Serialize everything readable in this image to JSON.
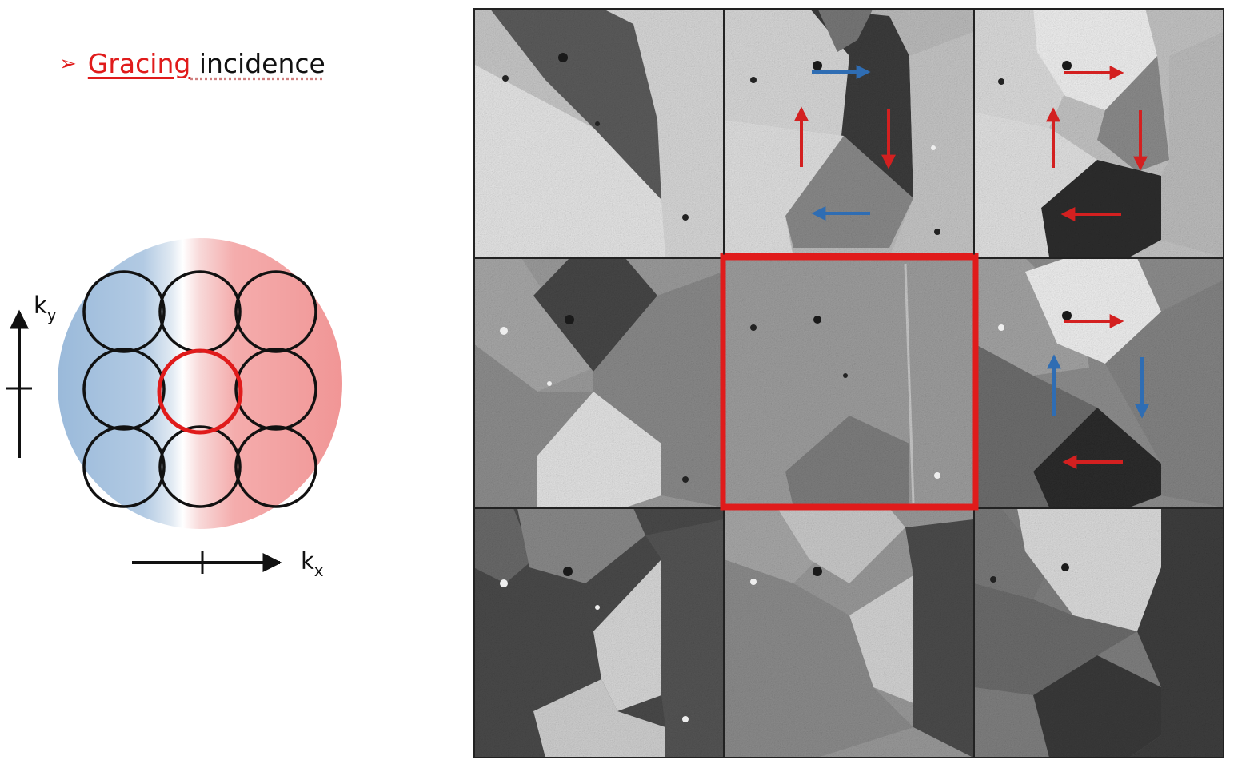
{
  "title": {
    "bullet": "➢",
    "highlight": "Gracing",
    "rest": " incidence"
  },
  "kspace": {
    "x_label": "k",
    "x_sub": "x",
    "y_label": "k",
    "y_sub": "y",
    "selected_circle": "center"
  },
  "colors": {
    "accent": "#e01b1b",
    "arrow_red": "#d32020",
    "arrow_blue": "#2f6db3",
    "disc_blue": "#7fa6cf",
    "disc_red": "#ef7f7f"
  },
  "images": {
    "layout": "3x3",
    "selected": "middle-center",
    "panels": [
      {
        "position": "top-left"
      },
      {
        "position": "top-center",
        "arrows": [
          {
            "dir": "right",
            "color": "blue"
          },
          {
            "dir": "down",
            "color": "red"
          },
          {
            "dir": "left",
            "color": "blue"
          },
          {
            "dir": "up",
            "color": "red"
          }
        ]
      },
      {
        "position": "top-right",
        "arrows": [
          {
            "dir": "right",
            "color": "red"
          },
          {
            "dir": "down",
            "color": "red"
          },
          {
            "dir": "left",
            "color": "red"
          },
          {
            "dir": "up",
            "color": "red"
          }
        ]
      },
      {
        "position": "middle-left"
      },
      {
        "position": "middle-center"
      },
      {
        "position": "middle-right",
        "arrows": [
          {
            "dir": "right",
            "color": "red"
          },
          {
            "dir": "down",
            "color": "blue"
          },
          {
            "dir": "left",
            "color": "red"
          },
          {
            "dir": "up",
            "color": "blue"
          }
        ]
      },
      {
        "position": "bottom-left"
      },
      {
        "position": "bottom-center"
      },
      {
        "position": "bottom-right"
      }
    ]
  }
}
